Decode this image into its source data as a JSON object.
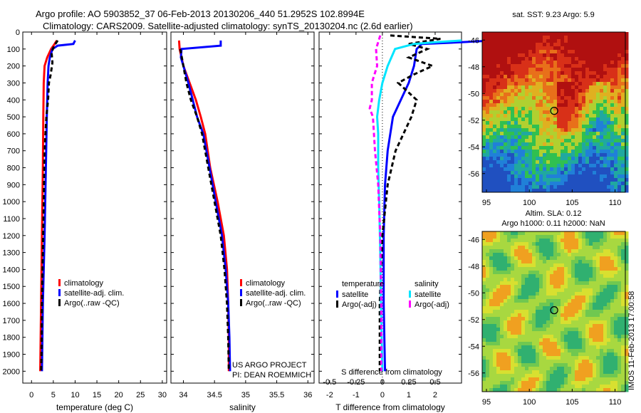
{
  "header": {
    "line1": "Argo profile: AO 5903852_37 06-Feb-2013 20130206_440 51.2952S 102.8994E",
    "line2": "Climatology: CARS2009. Satellite-adjusted climatology: synTS_20130204.nc (2.6d earlier)"
  },
  "colors": {
    "climatology": "#ff0000",
    "satellite": "#0000ff",
    "argo": "#000000",
    "satellite_s": "#00e5ff",
    "argo_s": "#ff00ff"
  },
  "chart_data": [
    {
      "type": "line",
      "xlabel": "temperature (deg C)",
      "ylabel": "",
      "xlim": [
        -2,
        31
      ],
      "ylim": [
        2070,
        0
      ],
      "xticks": [
        "0",
        "5",
        "10",
        "15",
        "20",
        "25",
        "30"
      ],
      "xtickvals": [
        0,
        5,
        10,
        15,
        20,
        25,
        30
      ],
      "yticks": [
        "0",
        "100",
        "200",
        "300",
        "400",
        "500",
        "600",
        "700",
        "800",
        "900",
        "1000",
        "1100",
        "1200",
        "1300",
        "1400",
        "1500",
        "1600",
        "1700",
        "1800",
        "1900",
        "2000"
      ],
      "legend": [
        "climatology",
        "satellite-adj. clim.",
        "Argo(..raw -QC)"
      ],
      "series": [
        {
          "name": "climatology",
          "style": "solid",
          "color": "#ff0000",
          "points": [
            [
              5.8,
              50
            ],
            [
              5.3,
              70
            ],
            [
              4.5,
              100
            ],
            [
              3.6,
              150
            ],
            [
              3.0,
              200
            ],
            [
              2.8,
              300
            ],
            [
              2.7,
              500
            ],
            [
              2.6,
              800
            ],
            [
              2.4,
              1200
            ],
            [
              2.2,
              1600
            ],
            [
              2.0,
              2000
            ]
          ]
        },
        {
          "name": "satellite-adj. clim.",
          "style": "solid",
          "color": "#0000ff",
          "points": [
            [
              10.0,
              50
            ],
            [
              9.8,
              60
            ],
            [
              9.6,
              70
            ],
            [
              6.0,
              80
            ],
            [
              4.8,
              100
            ],
            [
              4.2,
              150
            ],
            [
              3.9,
              200
            ],
            [
              3.7,
              300
            ],
            [
              3.5,
              500
            ],
            [
              3.3,
              800
            ],
            [
              3.0,
              1200
            ],
            [
              2.6,
              1600
            ],
            [
              2.4,
              2000
            ]
          ]
        },
        {
          "name": "Argo(..raw -QC)",
          "style": "dashed",
          "color": "#000000",
          "points": [
            [
              6.0,
              50
            ],
            [
              5.2,
              80
            ],
            [
              4.6,
              120
            ],
            [
              4.8,
              180
            ],
            [
              4.4,
              250
            ],
            [
              4.0,
              300
            ],
            [
              3.8,
              400
            ],
            [
              3.4,
              500
            ],
            [
              3.0,
              700
            ],
            [
              2.8,
              1000
            ],
            [
              2.6,
              1300
            ],
            [
              2.4,
              1600
            ],
            [
              2.3,
              1900
            ],
            [
              2.2,
              2000
            ]
          ]
        }
      ]
    },
    {
      "type": "line",
      "xlabel": "salinity",
      "xlim": [
        33.8,
        36.1
      ],
      "ylim": [
        2070,
        0
      ],
      "xticks": [
        "34",
        "34.5",
        "35",
        "35.5",
        "36"
      ],
      "xtickvals": [
        34,
        34.5,
        35,
        35.5,
        36
      ],
      "legend": [
        "climatology",
        "satellite-adj. clim.",
        "Argo(..raw -QC)"
      ],
      "annotation": [
        "US ARGO PROJECT",
        "PI: DEAN ROEMMICH"
      ],
      "series": [
        {
          "name": "climatology",
          "style": "solid",
          "color": "#ff0000",
          "points": [
            [
              33.93,
              50
            ],
            [
              33.94,
              100
            ],
            [
              34.0,
              200
            ],
            [
              34.1,
              300
            ],
            [
              34.2,
              400
            ],
            [
              34.28,
              500
            ],
            [
              34.35,
              600
            ],
            [
              34.43,
              800
            ],
            [
              34.55,
              1000
            ],
            [
              34.65,
              1200
            ],
            [
              34.7,
              1400
            ],
            [
              34.72,
              1600
            ],
            [
              34.73,
              1800
            ],
            [
              34.73,
              2000
            ]
          ]
        },
        {
          "name": "satellite-adj. clim.",
          "style": "solid",
          "color": "#0000ff",
          "points": [
            [
              34.6,
              50
            ],
            [
              34.6,
              80
            ],
            [
              33.97,
              100
            ],
            [
              33.96,
              150
            ],
            [
              34.0,
              200
            ],
            [
              34.08,
              300
            ],
            [
              34.15,
              400
            ],
            [
              34.22,
              500
            ],
            [
              34.32,
              600
            ],
            [
              34.42,
              800
            ],
            [
              34.52,
              1000
            ],
            [
              34.62,
              1200
            ],
            [
              34.68,
              1400
            ],
            [
              34.72,
              1600
            ],
            [
              34.74,
              1800
            ],
            [
              34.75,
              2000
            ]
          ]
        },
        {
          "name": "Argo(..raw -QC)",
          "style": "dashed",
          "color": "#000000",
          "points": [
            [
              33.95,
              100
            ],
            [
              34.0,
              200
            ],
            [
              34.05,
              300
            ],
            [
              34.12,
              400
            ],
            [
              34.22,
              500
            ],
            [
              34.3,
              600
            ],
            [
              34.4,
              800
            ],
            [
              34.5,
              1000
            ],
            [
              34.6,
              1200
            ],
            [
              34.66,
              1400
            ],
            [
              34.7,
              1600
            ],
            [
              34.72,
              1800
            ],
            [
              34.73,
              2000
            ]
          ]
        }
      ]
    },
    {
      "type": "line",
      "xlabel": "T difference from climatology",
      "xlabel2": "S difference from climatology",
      "xlim": [
        -2.4,
        3.0
      ],
      "xlim2": [
        -0.6,
        0.75
      ],
      "ylim": [
        2070,
        0
      ],
      "xticks": [
        "-2",
        "-1",
        "0",
        "1",
        "2"
      ],
      "xtickvals": [
        -2,
        -1,
        0,
        1,
        2
      ],
      "xticks2": [
        "-0.5",
        "-0.25",
        "0",
        "0.25",
        "0.5"
      ],
      "xtickvals2": [
        -0.5,
        -0.25,
        0,
        0.25,
        0.5
      ],
      "legend_titles": [
        "temperature",
        "salinity"
      ],
      "legend": [
        "satellite",
        "Argo(-adj)",
        "satellite",
        "Argo(-adj)"
      ],
      "series": [
        {
          "name": "satellite",
          "axis": "T",
          "style": "solid",
          "color": "#0000ff",
          "points": [
            [
              4.2,
              50
            ],
            [
              3.0,
              60
            ],
            [
              1.5,
              70
            ],
            [
              1.3,
              100
            ],
            [
              1.2,
              200
            ],
            [
              1.0,
              300
            ],
            [
              0.7,
              400
            ],
            [
              0.4,
              500
            ],
            [
              0.2,
              700
            ],
            [
              0.1,
              900
            ],
            [
              0.05,
              1200
            ],
            [
              0.05,
              1600
            ],
            [
              0.1,
              2000
            ]
          ]
        },
        {
          "name": "Argo(-adj)",
          "axis": "T",
          "style": "dashed",
          "color": "#000000",
          "points": [
            [
              0.3,
              20
            ],
            [
              2.2,
              40
            ],
            [
              1.0,
              70
            ],
            [
              1.7,
              100
            ],
            [
              1.0,
              150
            ],
            [
              1.9,
              200
            ],
            [
              1.2,
              250
            ],
            [
              0.6,
              300
            ],
            [
              1.3,
              400
            ],
            [
              1.1,
              500
            ],
            [
              0.8,
              600
            ],
            [
              0.5,
              700
            ],
            [
              0.2,
              900
            ],
            [
              0.0,
              1200
            ],
            [
              -0.1,
              1600
            ],
            [
              -0.1,
              2000
            ]
          ]
        },
        {
          "name": "satellite",
          "axis": "S",
          "style": "solid",
          "color": "#00e5ff",
          "points": [
            [
              0.75,
              50
            ],
            [
              0.5,
              60
            ],
            [
              0.3,
              70
            ],
            [
              0.12,
              100
            ],
            [
              0.05,
              200
            ],
            [
              0.0,
              300
            ],
            [
              -0.03,
              400
            ],
            [
              -0.05,
              500
            ],
            [
              -0.04,
              600
            ],
            [
              -0.04,
              800
            ],
            [
              -0.03,
              1000
            ],
            [
              -0.02,
              1300
            ],
            [
              -0.01,
              1700
            ],
            [
              0.0,
              2000
            ]
          ]
        },
        {
          "name": "Argo(-adj)",
          "axis": "S",
          "style": "dashed",
          "color": "#ff00ff",
          "points": [
            [
              -0.02,
              20
            ],
            [
              -0.06,
              100
            ],
            [
              -0.05,
              200
            ],
            [
              -0.1,
              300
            ],
            [
              -0.1,
              400
            ],
            [
              -0.12,
              450
            ],
            [
              -0.09,
              500
            ],
            [
              -0.07,
              700
            ],
            [
              -0.04,
              900
            ],
            [
              -0.02,
              1200
            ],
            [
              -0.01,
              1600
            ],
            [
              -0.01,
              2000
            ]
          ]
        }
      ]
    },
    {
      "type": "heatmap",
      "title": "sat. SST: 9.23 Argo: 5.9",
      "xlim": [
        94.5,
        111.2
      ],
      "ylim": [
        -57.4,
        -45.4
      ],
      "xticks": [
        "95",
        "100",
        "105",
        "110"
      ],
      "xtickvals": [
        95,
        100,
        105,
        110
      ],
      "yticks": [
        "-46",
        "-48",
        "-50",
        "-52",
        "-54",
        "-56"
      ],
      "ytickvals": [
        -46,
        -48,
        -50,
        -52,
        -54,
        -56
      ],
      "marker": [
        102.9,
        -51.3
      ]
    },
    {
      "type": "heatmap",
      "title": "Altim. SLA: 0.12",
      "subtitle": "Argo h1000: 0.11 h2000: NaN",
      "xlim": [
        94.5,
        111.2
      ],
      "ylim": [
        -57.4,
        -45.4
      ],
      "xticks": [
        "95",
        "100",
        "105",
        "110"
      ],
      "xtickvals": [
        95,
        100,
        105,
        110
      ],
      "yticks": [
        "-46",
        "-48",
        "-50",
        "-52",
        "-54",
        "-56"
      ],
      "ytickvals": [
        -46,
        -48,
        -50,
        -52,
        -54,
        -56
      ],
      "marker": [
        102.9,
        -51.3
      ],
      "side_label": "IMOS 11-Feb-2013 17:00:58"
    }
  ]
}
